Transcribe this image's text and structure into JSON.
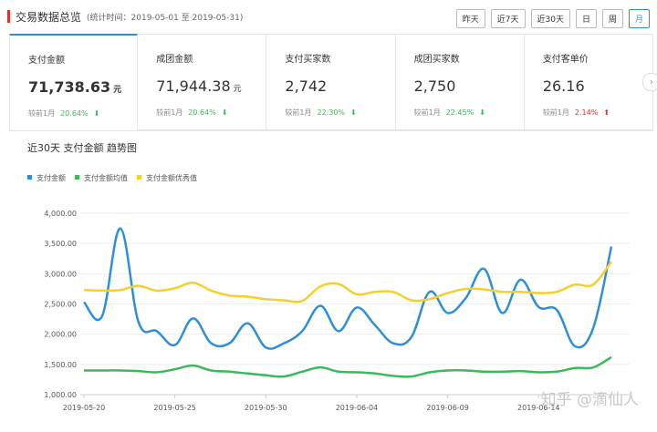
{
  "header": {
    "title": "交易数据总览",
    "subtitle": "(统计时间：2019-05-01 至 2019-05-31)"
  },
  "buttons": [
    "昨天",
    "近7天",
    "近30天",
    "日",
    "周",
    "月"
  ],
  "cards": [
    {
      "label": "支付金额",
      "value": "71,738.63",
      "unit": "元",
      "compare": "较前1月",
      "change": "20.64%",
      "trend": "down"
    },
    {
      "label": "成团金额",
      "value": "71,944.38",
      "unit": "元",
      "compare": "较前1月",
      "change": "20.64%",
      "trend": "down"
    },
    {
      "label": "支付买家数",
      "value": "2,742",
      "compare": "较前1月",
      "change": "22.30%",
      "trend": "down"
    },
    {
      "label": "成团买家数",
      "value": "2,750",
      "compare": "较前1月",
      "change": "22.45%",
      "trend": "down"
    },
    {
      "label": "支付客单价",
      "value": "26.16",
      "compare": "较前1月",
      "change": "2.14%",
      "trend": "up"
    }
  ],
  "chart_data": {
    "type": "line",
    "title": "近30天 支付金额 趋势图",
    "categories": [
      "2019-05-20",
      null,
      null,
      null,
      null,
      "2019-05-25",
      null,
      null,
      null,
      null,
      "2019-05-30",
      null,
      null,
      null,
      null,
      "2019-06-04",
      null,
      null,
      null,
      null,
      "2019-06-09",
      null,
      null,
      null,
      null,
      "2019-06-14",
      null,
      null,
      null,
      null
    ],
    "series": [
      {
        "name": "支付金额",
        "color": "#2e8fd6",
        "values": [
          2530,
          2300,
          3750,
          2200,
          2050,
          1820,
          2260,
          1850,
          1850,
          2180,
          1780,
          1850,
          2050,
          2470,
          2050,
          2440,
          2150,
          1850,
          1950,
          2700,
          2350,
          2600,
          3080,
          2350,
          2900,
          2450,
          2400,
          1800,
          2100,
          3450
        ]
      },
      {
        "name": "支付金额均值",
        "color": "#3cb95a",
        "values": [
          1400,
          1400,
          1400,
          1390,
          1370,
          1420,
          1480,
          1400,
          1380,
          1350,
          1320,
          1300,
          1380,
          1450,
          1380,
          1370,
          1350,
          1310,
          1300,
          1370,
          1400,
          1400,
          1380,
          1380,
          1390,
          1370,
          1380,
          1440,
          1450,
          1620
        ]
      },
      {
        "name": "支付金额优秀值",
        "color": "#f5cf2e",
        "values": [
          2730,
          2720,
          2730,
          2800,
          2720,
          2760,
          2850,
          2720,
          2640,
          2620,
          2580,
          2560,
          2550,
          2790,
          2830,
          2660,
          2700,
          2700,
          2560,
          2580,
          2680,
          2750,
          2740,
          2700,
          2700,
          2680,
          2700,
          2820,
          2820,
          3200
        ]
      }
    ],
    "ylim": [
      1000,
      4000
    ],
    "yticks": [
      {
        "value": 1000,
        "label": "1,000.00"
      },
      {
        "value": 1500,
        "label": "1,500.00"
      },
      {
        "value": 2000,
        "label": "2,000.00"
      },
      {
        "value": 2500,
        "label": "2,500.00"
      },
      {
        "value": 3000,
        "label": "3,000.00"
      },
      {
        "value": 3500,
        "label": "3,500.00"
      },
      {
        "value": 4000,
        "label": "4,000.00"
      }
    ],
    "grid": true
  },
  "watermark": "知乎 @滴仙人"
}
